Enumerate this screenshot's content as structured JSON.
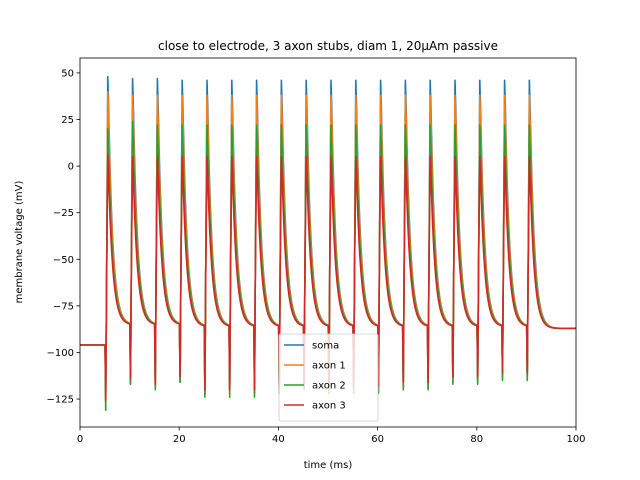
{
  "chart_data": {
    "type": "line",
    "title": "close to electrode, 3 axon stubs, diam 1, 20µAm passive",
    "xlabel": "time (ms)",
    "ylabel": "membrane voltage (mV)",
    "xlim": [
      0,
      100
    ],
    "ylim": [
      -140,
      58
    ],
    "xticks": [
      0,
      20,
      40,
      60,
      80,
      100
    ],
    "yticks": [
      -125,
      -100,
      -75,
      -50,
      -25,
      0,
      25,
      50
    ],
    "grid": false,
    "legend_position": "bottom-center",
    "resting_potential": -96,
    "stim_onset_ms": 5,
    "spike_times_ms": [
      5.3,
      10.3,
      15.3,
      20.3,
      25.3,
      30.3,
      35.3,
      40.3,
      45.3,
      50.3,
      55.3,
      60.3,
      65.3,
      70.3,
      75.3,
      80.3,
      85.3,
      90.3
    ],
    "trough_before_spike_mV": [
      -86,
      -85,
      -85,
      -85,
      -86,
      -86,
      -86,
      -86,
      -86,
      -86,
      -86,
      -86,
      -86,
      -86,
      -86,
      -86,
      -86,
      -86
    ],
    "end_value_mV": -87,
    "series": [
      {
        "name": "soma",
        "color": "#1f77b4",
        "peaks": [
          48,
          47,
          47,
          46,
          46,
          46,
          46,
          46,
          46,
          46,
          46,
          46,
          46,
          46,
          46,
          46,
          46,
          46
        ],
        "dips": [
          -120,
          -116,
          -118,
          -114,
          -120,
          -120,
          -120,
          -118,
          -116,
          -118,
          -118,
          -118,
          -116,
          -116,
          -114,
          -114,
          -112,
          -112
        ]
      },
      {
        "name": "axon 1",
        "color": "#ff7f0e",
        "peaks": [
          40,
          38,
          38,
          38,
          38,
          38,
          38,
          38,
          38,
          38,
          38,
          38,
          38,
          38,
          38,
          38,
          38,
          38
        ],
        "dips": [
          -125,
          -117,
          -119,
          -116,
          -122,
          -122,
          -122,
          -120,
          -118,
          -120,
          -120,
          -121,
          -119,
          -119,
          -116,
          -116,
          -114,
          -114
        ]
      },
      {
        "name": "axon 2",
        "color": "#2ca02c",
        "peaks": [
          20,
          24,
          22,
          22,
          22,
          22,
          22,
          22,
          22,
          22,
          22,
          22,
          22,
          22,
          22,
          22,
          22,
          22
        ],
        "dips": [
          -131,
          -117,
          -120,
          -116,
          -124,
          -124,
          -124,
          -122,
          -120,
          -122,
          -122,
          -122,
          -120,
          -120,
          -117,
          -117,
          -115,
          -115
        ]
      },
      {
        "name": "axon 3",
        "color": "#d62728",
        "peaks": [
          6,
          5,
          5,
          5,
          5,
          5,
          5,
          5,
          5,
          5,
          5,
          5,
          5,
          5,
          5,
          5,
          5,
          5
        ],
        "dips": [
          -126,
          -114,
          -117,
          -113,
          -120,
          -120,
          -120,
          -118,
          -116,
          -118,
          -118,
          -118,
          -116,
          -116,
          -113,
          -113,
          -111,
          -111
        ]
      }
    ]
  }
}
